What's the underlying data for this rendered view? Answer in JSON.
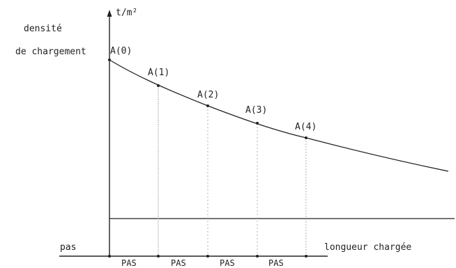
{
  "y_axis": {
    "unit": "t/m²",
    "label_line1": "densité",
    "label_line2": "de chargement"
  },
  "x_axis": {
    "label": "longueur chargée",
    "left_label": "pas"
  },
  "points": [
    "A(0)",
    "A(1)",
    "A(2)",
    "A(3)",
    "A(4)"
  ],
  "step_labels": [
    "PAS",
    "PAS",
    "PAS",
    "PAS"
  ],
  "colors": {
    "ink": "#222222",
    "guide": "#9a9a9a"
  }
}
